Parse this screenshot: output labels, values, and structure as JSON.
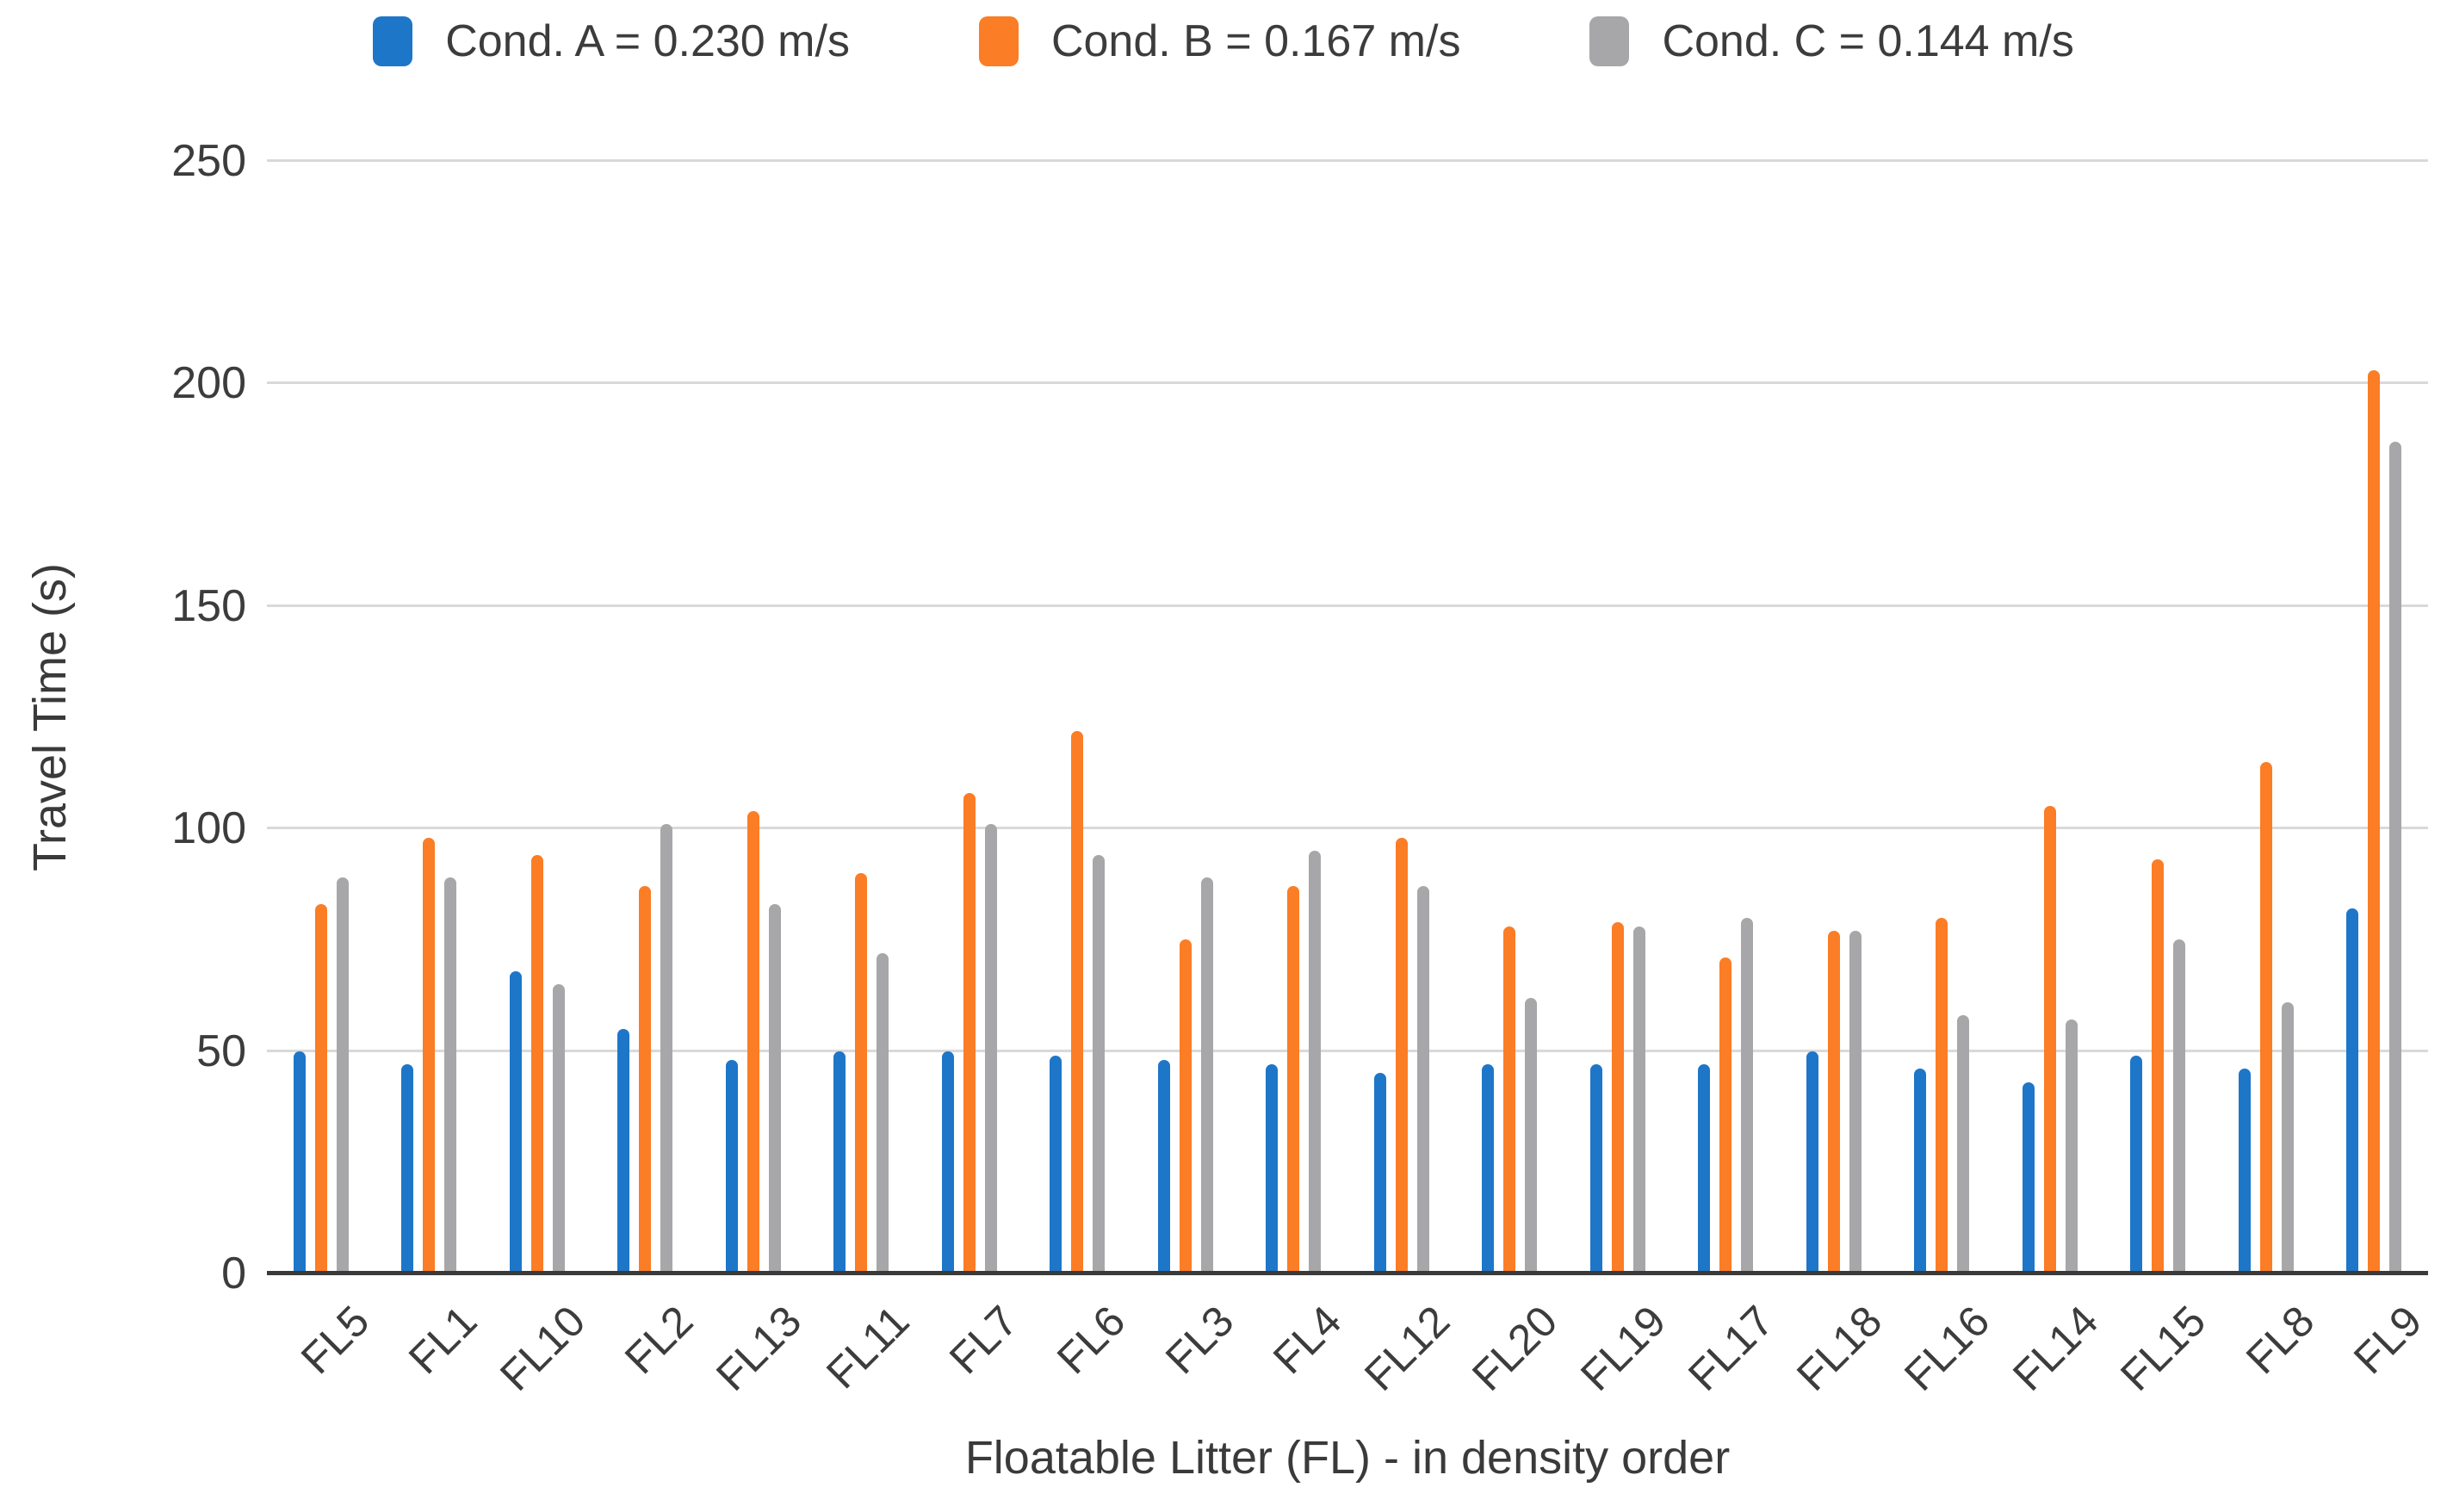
{
  "y_axis": {
    "title": "Travel Time (s)",
    "ticks": [
      0,
      50,
      100,
      150,
      200,
      250
    ]
  },
  "x_axis": {
    "title": "Floatable Litter (FL) - in density order"
  },
  "colors": {
    "cond_a_blue": "#1e76c8",
    "cond_b_orange": "#fb7d25",
    "cond_c_gray": "#a7a7a9",
    "gridline": "#d9d9d9",
    "axis_line": "#3a3a3a",
    "text": "#3c3c3c"
  },
  "chart_data": {
    "type": "bar",
    "title": "",
    "xlabel": "Floatable Litter (FL) - in density order",
    "ylabel": "Travel Time (s)",
    "ylim": [
      0,
      250
    ],
    "ytick_step": 50,
    "grid": true,
    "legend_position": "top",
    "categories": [
      "FL5",
      "FL1",
      "FL10",
      "FL2",
      "FL13",
      "FL11",
      "FL7",
      "FL6",
      "FL3",
      "FL4",
      "FL12",
      "FL20",
      "FL19",
      "FL17",
      "FL18",
      "FL16",
      "FL14",
      "FL15",
      "FL8",
      "FL9"
    ],
    "series": [
      {
        "name": "Cond. A = 0.230 m/s",
        "color": "#1e76c8",
        "values": [
          50,
          47,
          68,
          55,
          48,
          50,
          50,
          49,
          48,
          47,
          45,
          47,
          47,
          47,
          50,
          46,
          43,
          49,
          46,
          82
        ]
      },
      {
        "name": "Cond. B = 0.167 m/s",
        "color": "#fb7d25",
        "values": [
          83,
          98,
          94,
          87,
          104,
          90,
          108,
          122,
          75,
          87,
          98,
          78,
          79,
          71,
          77,
          80,
          105,
          93,
          115,
          203
        ]
      },
      {
        "name": "Cond. C = 0.144 m/s",
        "color": "#a7a7a9",
        "values": [
          89,
          89,
          65,
          101,
          83,
          72,
          101,
          94,
          89,
          95,
          87,
          62,
          78,
          80,
          77,
          58,
          57,
          75,
          61,
          187
        ]
      }
    ]
  }
}
